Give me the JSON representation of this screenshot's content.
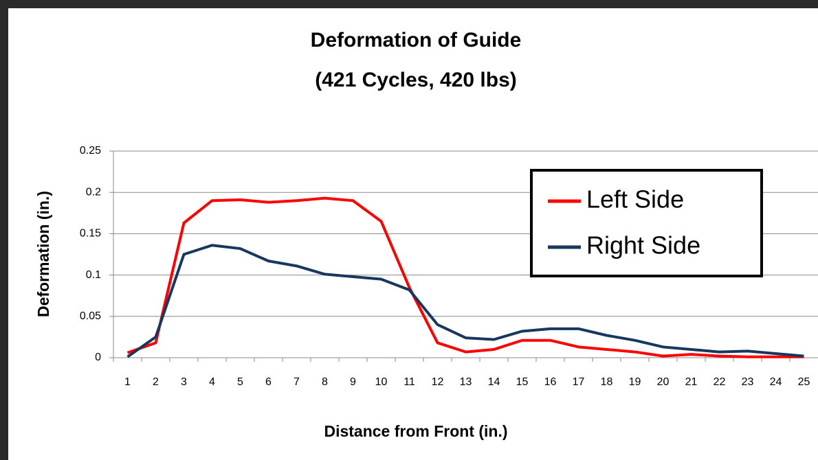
{
  "chart_data": {
    "type": "line",
    "title": "Deformation of Guide",
    "subtitle": "(421 Cycles, 420 lbs)",
    "x_label": "Distance from Front (in.)",
    "y_label": "Deformation (in.)",
    "categories": [
      "1",
      "2",
      "3",
      "4",
      "5",
      "6",
      "7",
      "8",
      "9",
      "10",
      "11",
      "12",
      "13",
      "14",
      "15",
      "16",
      "17",
      "18",
      "19",
      "20",
      "21",
      "22",
      "23",
      "24",
      "25"
    ],
    "series": [
      {
        "name": "Left Side",
        "color": "#ff0000",
        "values": [
          0.006,
          0.018,
          0.163,
          0.19,
          0.191,
          0.188,
          0.19,
          0.193,
          0.19,
          0.165,
          0.085,
          0.018,
          0.007,
          0.01,
          0.021,
          0.021,
          0.013,
          0.01,
          0.007,
          0.002,
          0.004,
          0.002,
          0.001,
          0.001,
          0.001
        ]
      },
      {
        "name": "Right Side",
        "color": "#17375e",
        "values": [
          0.001,
          0.025,
          0.125,
          0.136,
          0.132,
          0.117,
          0.111,
          0.101,
          0.098,
          0.095,
          0.082,
          0.04,
          0.024,
          0.022,
          0.032,
          0.035,
          0.035,
          0.027,
          0.021,
          0.013,
          0.01,
          0.007,
          0.008,
          0.005,
          0.002
        ]
      }
    ],
    "ylim": [
      0,
      0.25
    ],
    "yticks": [
      0,
      0.05,
      0.1,
      0.15,
      0.2,
      0.25
    ],
    "grid": true,
    "legend": "upper right"
  }
}
